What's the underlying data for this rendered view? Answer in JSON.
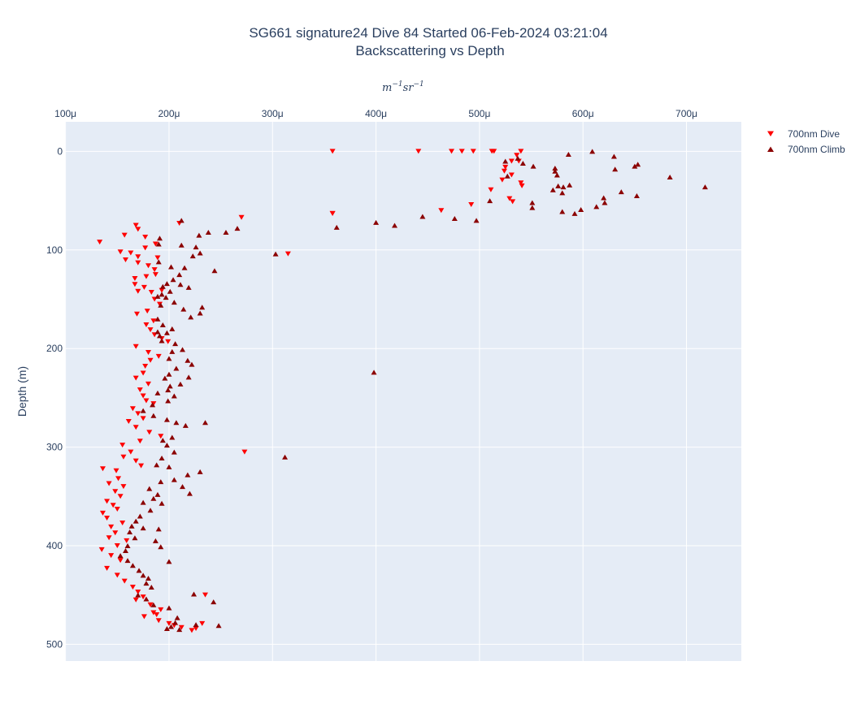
{
  "chart_data": {
    "type": "scatter",
    "title": "SG661 signature24 Dive 84 Started 06-Feb-2024 03:21:04",
    "subtitle": "Backscattering vs Depth",
    "xlabel_unit": "m",
    "xlabel_exp1": "−1",
    "xlabel_mid": "sr",
    "xlabel_exp2": "−1",
    "ylabel": "Depth (m)",
    "xlim": [
      9.95e-05,
      0.000753
    ],
    "ylim": [
      517,
      -30
    ],
    "x_ticks": [
      0.0001,
      0.0002,
      0.0003,
      0.0004,
      0.0005,
      0.0006,
      0.0007
    ],
    "x_tick_labels": [
      "100μ",
      "200μ",
      "300μ",
      "400μ",
      "500μ",
      "600μ",
      "700μ"
    ],
    "y_ticks": [
      0,
      100,
      200,
      300,
      400,
      500
    ],
    "y_tick_labels": [
      "0",
      "100",
      "200",
      "300",
      "400",
      "500"
    ],
    "grid": true,
    "legend_position": "top-right",
    "series": [
      {
        "name": "700nm Dive",
        "marker": "triangle-down",
        "color": "#ff0000",
        "points": [
          [
            358,
            0
          ],
          [
            441,
            0
          ],
          [
            473,
            0
          ],
          [
            483,
            0
          ],
          [
            494,
            0
          ],
          [
            512,
            0
          ],
          [
            514,
            0
          ],
          [
            540,
            0
          ],
          [
            536,
            4
          ],
          [
            531,
            10
          ],
          [
            538,
            10
          ],
          [
            525,
            16
          ],
          [
            524,
            20
          ],
          [
            531,
            24
          ],
          [
            522,
            29
          ],
          [
            540,
            32
          ],
          [
            541,
            35
          ],
          [
            511,
            39
          ],
          [
            529,
            48
          ],
          [
            532,
            51
          ],
          [
            492,
            54
          ],
          [
            463,
            60
          ],
          [
            358,
            63
          ],
          [
            270,
            67
          ],
          [
            210,
            73
          ],
          [
            168,
            75
          ],
          [
            170,
            79
          ],
          [
            157,
            85
          ],
          [
            177,
            87
          ],
          [
            133,
            92
          ],
          [
            187,
            94
          ],
          [
            177,
            98
          ],
          [
            153,
            102
          ],
          [
            163,
            103
          ],
          [
            170,
            107
          ],
          [
            189,
            108
          ],
          [
            158,
            110
          ],
          [
            170,
            113
          ],
          [
            180,
            116
          ],
          [
            186,
            120
          ],
          [
            187,
            125
          ],
          [
            178,
            127
          ],
          [
            167,
            129
          ],
          [
            167,
            135
          ],
          [
            176,
            138
          ],
          [
            170,
            142
          ],
          [
            315,
            104
          ],
          [
            193,
            141
          ],
          [
            183,
            143
          ],
          [
            186,
            150
          ],
          [
            191,
            155
          ],
          [
            179,
            162
          ],
          [
            169,
            165
          ],
          [
            185,
            172
          ],
          [
            178,
            176
          ],
          [
            182,
            181
          ],
          [
            186,
            186
          ],
          [
            193,
            190
          ],
          [
            199,
            193
          ],
          [
            168,
            198
          ],
          [
            180,
            204
          ],
          [
            190,
            208
          ],
          [
            182,
            212
          ],
          [
            177,
            218
          ],
          [
            175,
            225
          ],
          [
            168,
            230
          ],
          [
            180,
            236
          ],
          [
            172,
            242
          ],
          [
            175,
            248
          ],
          [
            178,
            253
          ],
          [
            185,
            256
          ],
          [
            165,
            261
          ],
          [
            170,
            266
          ],
          [
            175,
            271
          ],
          [
            161,
            274
          ],
          [
            168,
            280
          ],
          [
            181,
            285
          ],
          [
            192,
            289
          ],
          [
            172,
            294
          ],
          [
            155,
            298
          ],
          [
            163,
            305
          ],
          [
            156,
            310
          ],
          [
            168,
            314
          ],
          [
            173,
            319
          ],
          [
            136,
            322
          ],
          [
            149,
            324
          ],
          [
            151,
            332
          ],
          [
            142,
            337
          ],
          [
            156,
            340
          ],
          [
            148,
            345
          ],
          [
            153,
            350
          ],
          [
            140,
            355
          ],
          [
            146,
            359
          ],
          [
            150,
            363
          ],
          [
            136,
            367
          ],
          [
            140,
            372
          ],
          [
            155,
            377
          ],
          [
            144,
            381
          ],
          [
            148,
            387
          ],
          [
            142,
            392
          ],
          [
            159,
            395
          ],
          [
            150,
            400
          ],
          [
            135,
            404
          ],
          [
            144,
            410
          ],
          [
            153,
            415
          ],
          [
            140,
            423
          ],
          [
            150,
            430
          ],
          [
            157,
            436
          ],
          [
            165,
            442
          ],
          [
            170,
            447
          ],
          [
            175,
            452
          ],
          [
            168,
            455
          ],
          [
            182,
            460
          ],
          [
            192,
            465
          ],
          [
            185,
            468
          ],
          [
            176,
            472
          ],
          [
            190,
            476
          ],
          [
            200,
            479
          ],
          [
            188,
            470
          ],
          [
            205,
            481
          ],
          [
            212,
            483
          ],
          [
            222,
            486
          ],
          [
            226,
            484
          ],
          [
            232,
            479
          ],
          [
            235,
            450
          ],
          [
            273,
            305
          ],
          [
            358,
            63
          ]
        ]
      },
      {
        "name": "700nm Climb",
        "marker": "triangle-up",
        "color": "#8b0000",
        "points": [
          [
            609,
            0
          ],
          [
            586,
            3
          ],
          [
            630,
            5
          ],
          [
            525,
            10
          ],
          [
            537,
            7
          ],
          [
            542,
            12
          ],
          [
            552,
            15
          ],
          [
            573,
            17
          ],
          [
            573,
            20
          ],
          [
            527,
            25
          ],
          [
            653,
            13
          ],
          [
            650,
            15
          ],
          [
            631,
            18
          ],
          [
            575,
            24
          ],
          [
            684,
            26
          ],
          [
            718,
            36
          ],
          [
            576,
            35
          ],
          [
            581,
            36
          ],
          [
            571,
            39
          ],
          [
            580,
            42
          ],
          [
            637,
            41
          ],
          [
            587,
            34
          ],
          [
            652,
            45
          ],
          [
            620,
            47
          ],
          [
            621,
            52
          ],
          [
            510,
            50
          ],
          [
            551,
            52
          ],
          [
            551,
            57
          ],
          [
            613,
            56
          ],
          [
            598,
            59
          ],
          [
            580,
            61
          ],
          [
            592,
            63
          ],
          [
            476,
            68
          ],
          [
            445,
            66
          ],
          [
            497,
            70
          ],
          [
            400,
            72
          ],
          [
            418,
            75
          ],
          [
            362,
            77
          ],
          [
            212,
            70
          ],
          [
            266,
            78
          ],
          [
            255,
            82
          ],
          [
            238,
            82
          ],
          [
            229,
            85
          ],
          [
            191,
            88
          ],
          [
            190,
            94
          ],
          [
            212,
            95
          ],
          [
            226,
            97
          ],
          [
            230,
            103
          ],
          [
            223,
            106
          ],
          [
            190,
            112
          ],
          [
            202,
            117
          ],
          [
            215,
            118
          ],
          [
            244,
            121
          ],
          [
            210,
            125
          ],
          [
            204,
            130
          ],
          [
            198,
            134
          ],
          [
            211,
            135
          ],
          [
            194,
            137
          ],
          [
            219,
            138
          ],
          [
            201,
            142
          ],
          [
            193,
            145
          ],
          [
            189,
            147
          ],
          [
            197,
            148
          ],
          [
            205,
            153
          ],
          [
            192,
            156
          ],
          [
            214,
            160
          ],
          [
            230,
            164
          ],
          [
            221,
            168
          ],
          [
            232,
            158
          ],
          [
            189,
            170
          ],
          [
            194,
            176
          ],
          [
            203,
            180
          ],
          [
            189,
            183
          ],
          [
            191,
            187
          ],
          [
            198,
            184
          ],
          [
            193,
            192
          ],
          [
            206,
            195
          ],
          [
            213,
            201
          ],
          [
            203,
            203
          ],
          [
            200,
            210
          ],
          [
            218,
            212
          ],
          [
            222,
            216
          ],
          [
            207,
            220
          ],
          [
            200,
            226
          ],
          [
            196,
            230
          ],
          [
            219,
            229
          ],
          [
            211,
            236
          ],
          [
            201,
            238
          ],
          [
            199,
            242
          ],
          [
            189,
            245
          ],
          [
            205,
            248
          ],
          [
            199,
            253
          ],
          [
            184,
            257
          ],
          [
            175,
            263
          ],
          [
            185,
            268
          ],
          [
            198,
            272
          ],
          [
            207,
            275
          ],
          [
            216,
            278
          ],
          [
            235,
            275
          ],
          [
            203,
            290
          ],
          [
            194,
            293
          ],
          [
            198,
            298
          ],
          [
            205,
            305
          ],
          [
            193,
            311
          ],
          [
            188,
            318
          ],
          [
            200,
            320
          ],
          [
            230,
            325
          ],
          [
            218,
            328
          ],
          [
            205,
            333
          ],
          [
            192,
            335
          ],
          [
            181,
            342
          ],
          [
            189,
            348
          ],
          [
            185,
            352
          ],
          [
            175,
            356
          ],
          [
            182,
            364
          ],
          [
            172,
            370
          ],
          [
            168,
            375
          ],
          [
            164,
            380
          ],
          [
            175,
            382
          ],
          [
            162,
            386
          ],
          [
            167,
            392
          ],
          [
            160,
            400
          ],
          [
            158,
            405
          ],
          [
            153,
            410
          ],
          [
            160,
            415
          ],
          [
            165,
            420
          ],
          [
            171,
            425
          ],
          [
            175,
            430
          ],
          [
            180,
            433
          ],
          [
            178,
            438
          ],
          [
            183,
            442
          ],
          [
            170,
            450
          ],
          [
            178,
            454
          ],
          [
            185,
            460
          ],
          [
            200,
            463
          ],
          [
            208,
            473
          ],
          [
            206,
            478
          ],
          [
            202,
            482
          ],
          [
            198,
            484
          ],
          [
            210,
            485
          ],
          [
            226,
            480
          ],
          [
            248,
            481
          ],
          [
            243,
            457
          ],
          [
            224,
            449
          ],
          [
            200,
            416
          ],
          [
            398,
            224
          ],
          [
            312,
            310
          ],
          [
            303,
            104
          ],
          [
            213,
            340
          ],
          [
            220,
            347
          ],
          [
            193,
            357
          ],
          [
            190,
            383
          ],
          [
            187,
            395
          ],
          [
            192,
            401
          ]
        ]
      }
    ]
  }
}
